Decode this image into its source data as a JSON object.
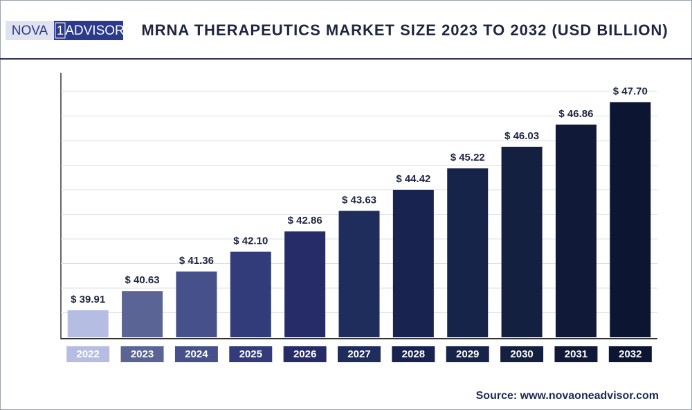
{
  "logo": {
    "left": "NOVA",
    "mid": "1",
    "right": "ADVISOR"
  },
  "source": "Source: www.novaoneadvisor.com",
  "chart_data": {
    "type": "bar",
    "title": "MRNA THERAPEUTICS MARKET SIZE 2023 TO 2032 (USD BILLION)",
    "categories": [
      "2022",
      "2023",
      "2024",
      "2025",
      "2026",
      "2027",
      "2028",
      "2029",
      "2030",
      "2031",
      "2032"
    ],
    "values": [
      39.91,
      40.63,
      41.36,
      42.1,
      42.86,
      43.63,
      44.42,
      45.22,
      46.03,
      46.86,
      47.7
    ],
    "value_labels": [
      "$ 39.91",
      "$ 40.63",
      "$ 41.36",
      "$ 42.10",
      "$ 42.86",
      "$ 43.63",
      "$ 44.42",
      "$ 45.22",
      "$ 46.03",
      "$ 46.86",
      "$ 47.70"
    ],
    "colors": [
      "#b5bde3",
      "#5a6596",
      "#46508a",
      "#333c7a",
      "#252c68",
      "#1e2d5c",
      "#18234f",
      "#172449",
      "#14203f",
      "#101a38",
      "#0c1632"
    ],
    "ylim": [
      38.9,
      48.1
    ],
    "grid": true
  }
}
